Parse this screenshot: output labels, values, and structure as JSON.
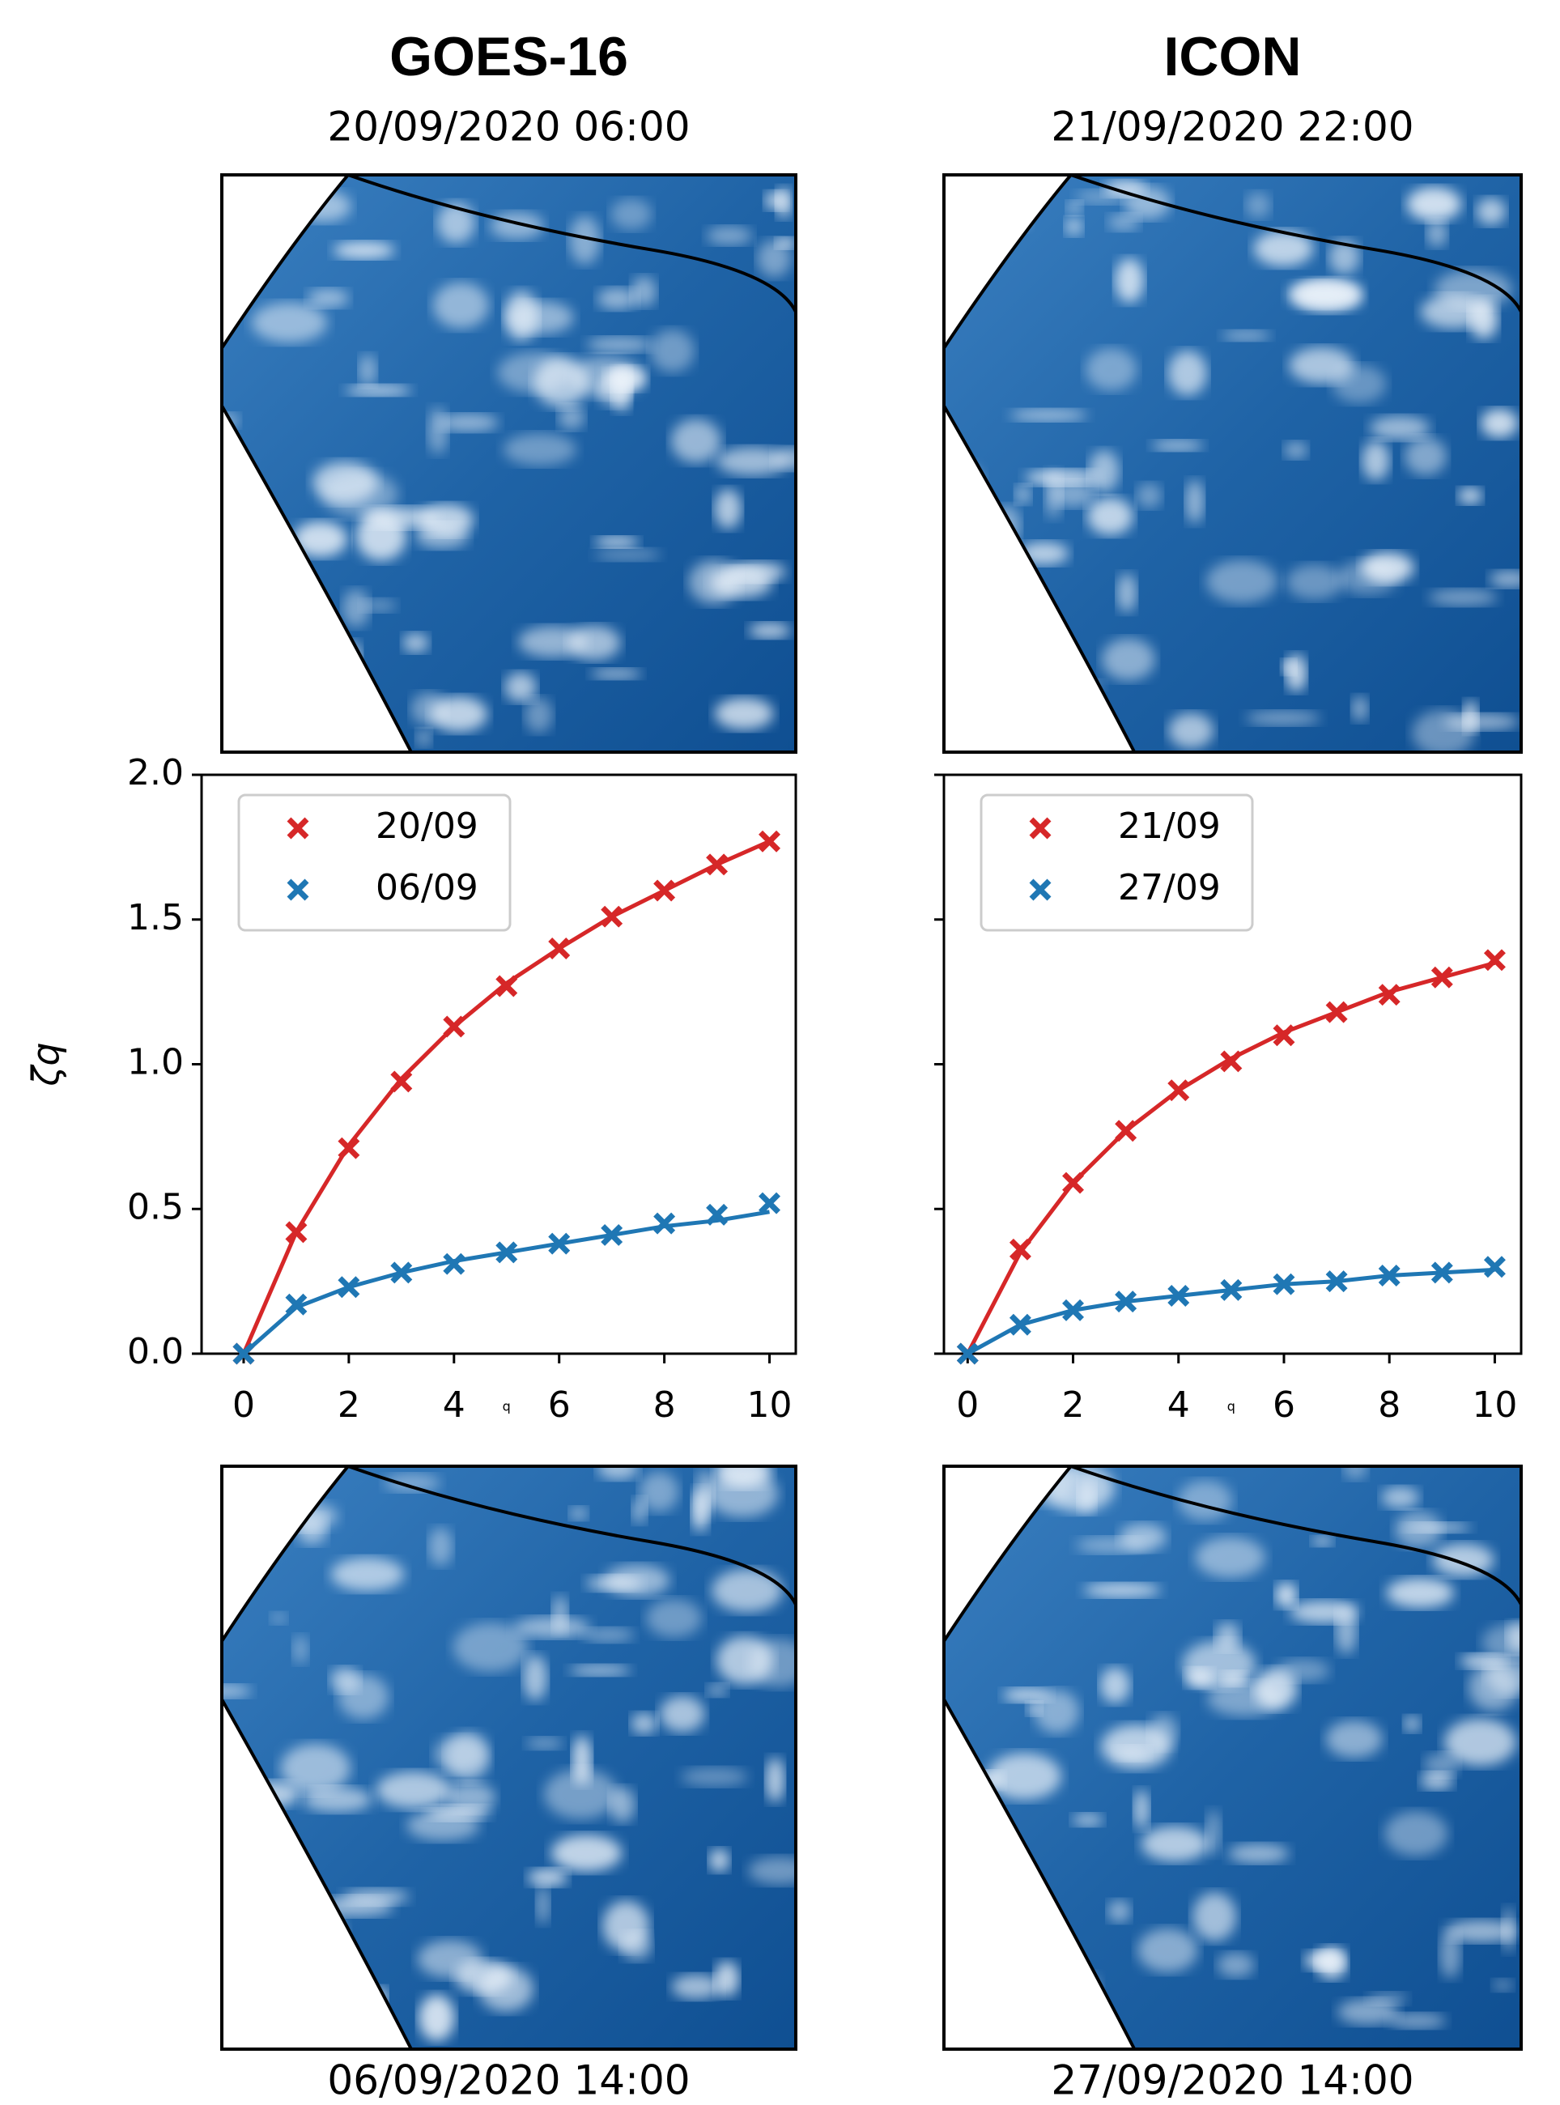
{
  "chart_data": [
    {
      "type": "line",
      "title": "GOES-16",
      "subtitle": "20/09/2020 06:00",
      "caption": "06/09/2020 14:00",
      "xlabel": "q",
      "ylabel": "ζq",
      "x": [
        0,
        1,
        2,
        3,
        4,
        5,
        6,
        7,
        8,
        9,
        10
      ],
      "series": [
        {
          "name": "20/09",
          "color": "#d62728",
          "values": [
            0,
            0.42,
            0.71,
            0.94,
            1.13,
            1.27,
            1.4,
            1.51,
            1.6,
            1.69,
            1.77
          ],
          "fit": [
            0,
            0.42,
            0.72,
            0.95,
            1.13,
            1.28,
            1.4,
            1.51,
            1.6,
            1.69,
            1.77
          ]
        },
        {
          "name": "06/09",
          "color": "#1f77b4",
          "values": [
            0,
            0.17,
            0.23,
            0.28,
            0.31,
            0.35,
            0.38,
            0.41,
            0.45,
            0.48,
            0.52
          ],
          "fit": [
            0,
            0.16,
            0.23,
            0.28,
            0.32,
            0.35,
            0.38,
            0.41,
            0.44,
            0.46,
            0.49
          ]
        }
      ],
      "xlim": [
        -0.8,
        10.5
      ],
      "ylim": [
        0,
        2.0
      ],
      "xticks": [
        0,
        2,
        4,
        6,
        8,
        10
      ],
      "yticks": [
        {
          "value": 0,
          "label": "0.0"
        },
        {
          "value": 0.5,
          "label": "0.5"
        },
        {
          "value": 1,
          "label": "1.0"
        },
        {
          "value": 1.5,
          "label": "1.5"
        },
        {
          "value": 2,
          "label": "2.0"
        }
      ],
      "ytick_labels": true,
      "legend": "upper left"
    },
    {
      "type": "line",
      "title": "ICON",
      "subtitle": "21/09/2020 22:00",
      "caption": "27/09/2020 14:00",
      "xlabel": "q",
      "x": [
        0,
        1,
        2,
        3,
        4,
        5,
        6,
        7,
        8,
        9,
        10
      ],
      "series": [
        {
          "name": "21/09",
          "color": "#d62728",
          "values": [
            0,
            0.36,
            0.59,
            0.77,
            0.91,
            1.01,
            1.1,
            1.18,
            1.24,
            1.3,
            1.36
          ],
          "fit": [
            0,
            0.35,
            0.59,
            0.77,
            0.91,
            1.02,
            1.11,
            1.18,
            1.25,
            1.3,
            1.35
          ]
        },
        {
          "name": "27/09",
          "color": "#1f77b4",
          "values": [
            0,
            0.1,
            0.15,
            0.18,
            0.2,
            0.22,
            0.24,
            0.25,
            0.27,
            0.28,
            0.3
          ],
          "fit": [
            0,
            0.1,
            0.15,
            0.18,
            0.2,
            0.22,
            0.24,
            0.25,
            0.27,
            0.28,
            0.29
          ]
        }
      ],
      "xlim": [
        -0.45,
        10.5
      ],
      "ylim": [
        0,
        2.0
      ],
      "xticks": [
        0,
        2,
        4,
        6,
        8,
        10
      ],
      "yticks": [
        {
          "value": 0,
          "label": "0.0"
        },
        {
          "value": 0.5,
          "label": "0.5"
        },
        {
          "value": 1,
          "label": "1.0"
        },
        {
          "value": 1.5,
          "label": "1.5"
        },
        {
          "value": 2,
          "label": "2.0"
        }
      ],
      "ytick_labels": false,
      "legend": "upper left"
    }
  ]
}
